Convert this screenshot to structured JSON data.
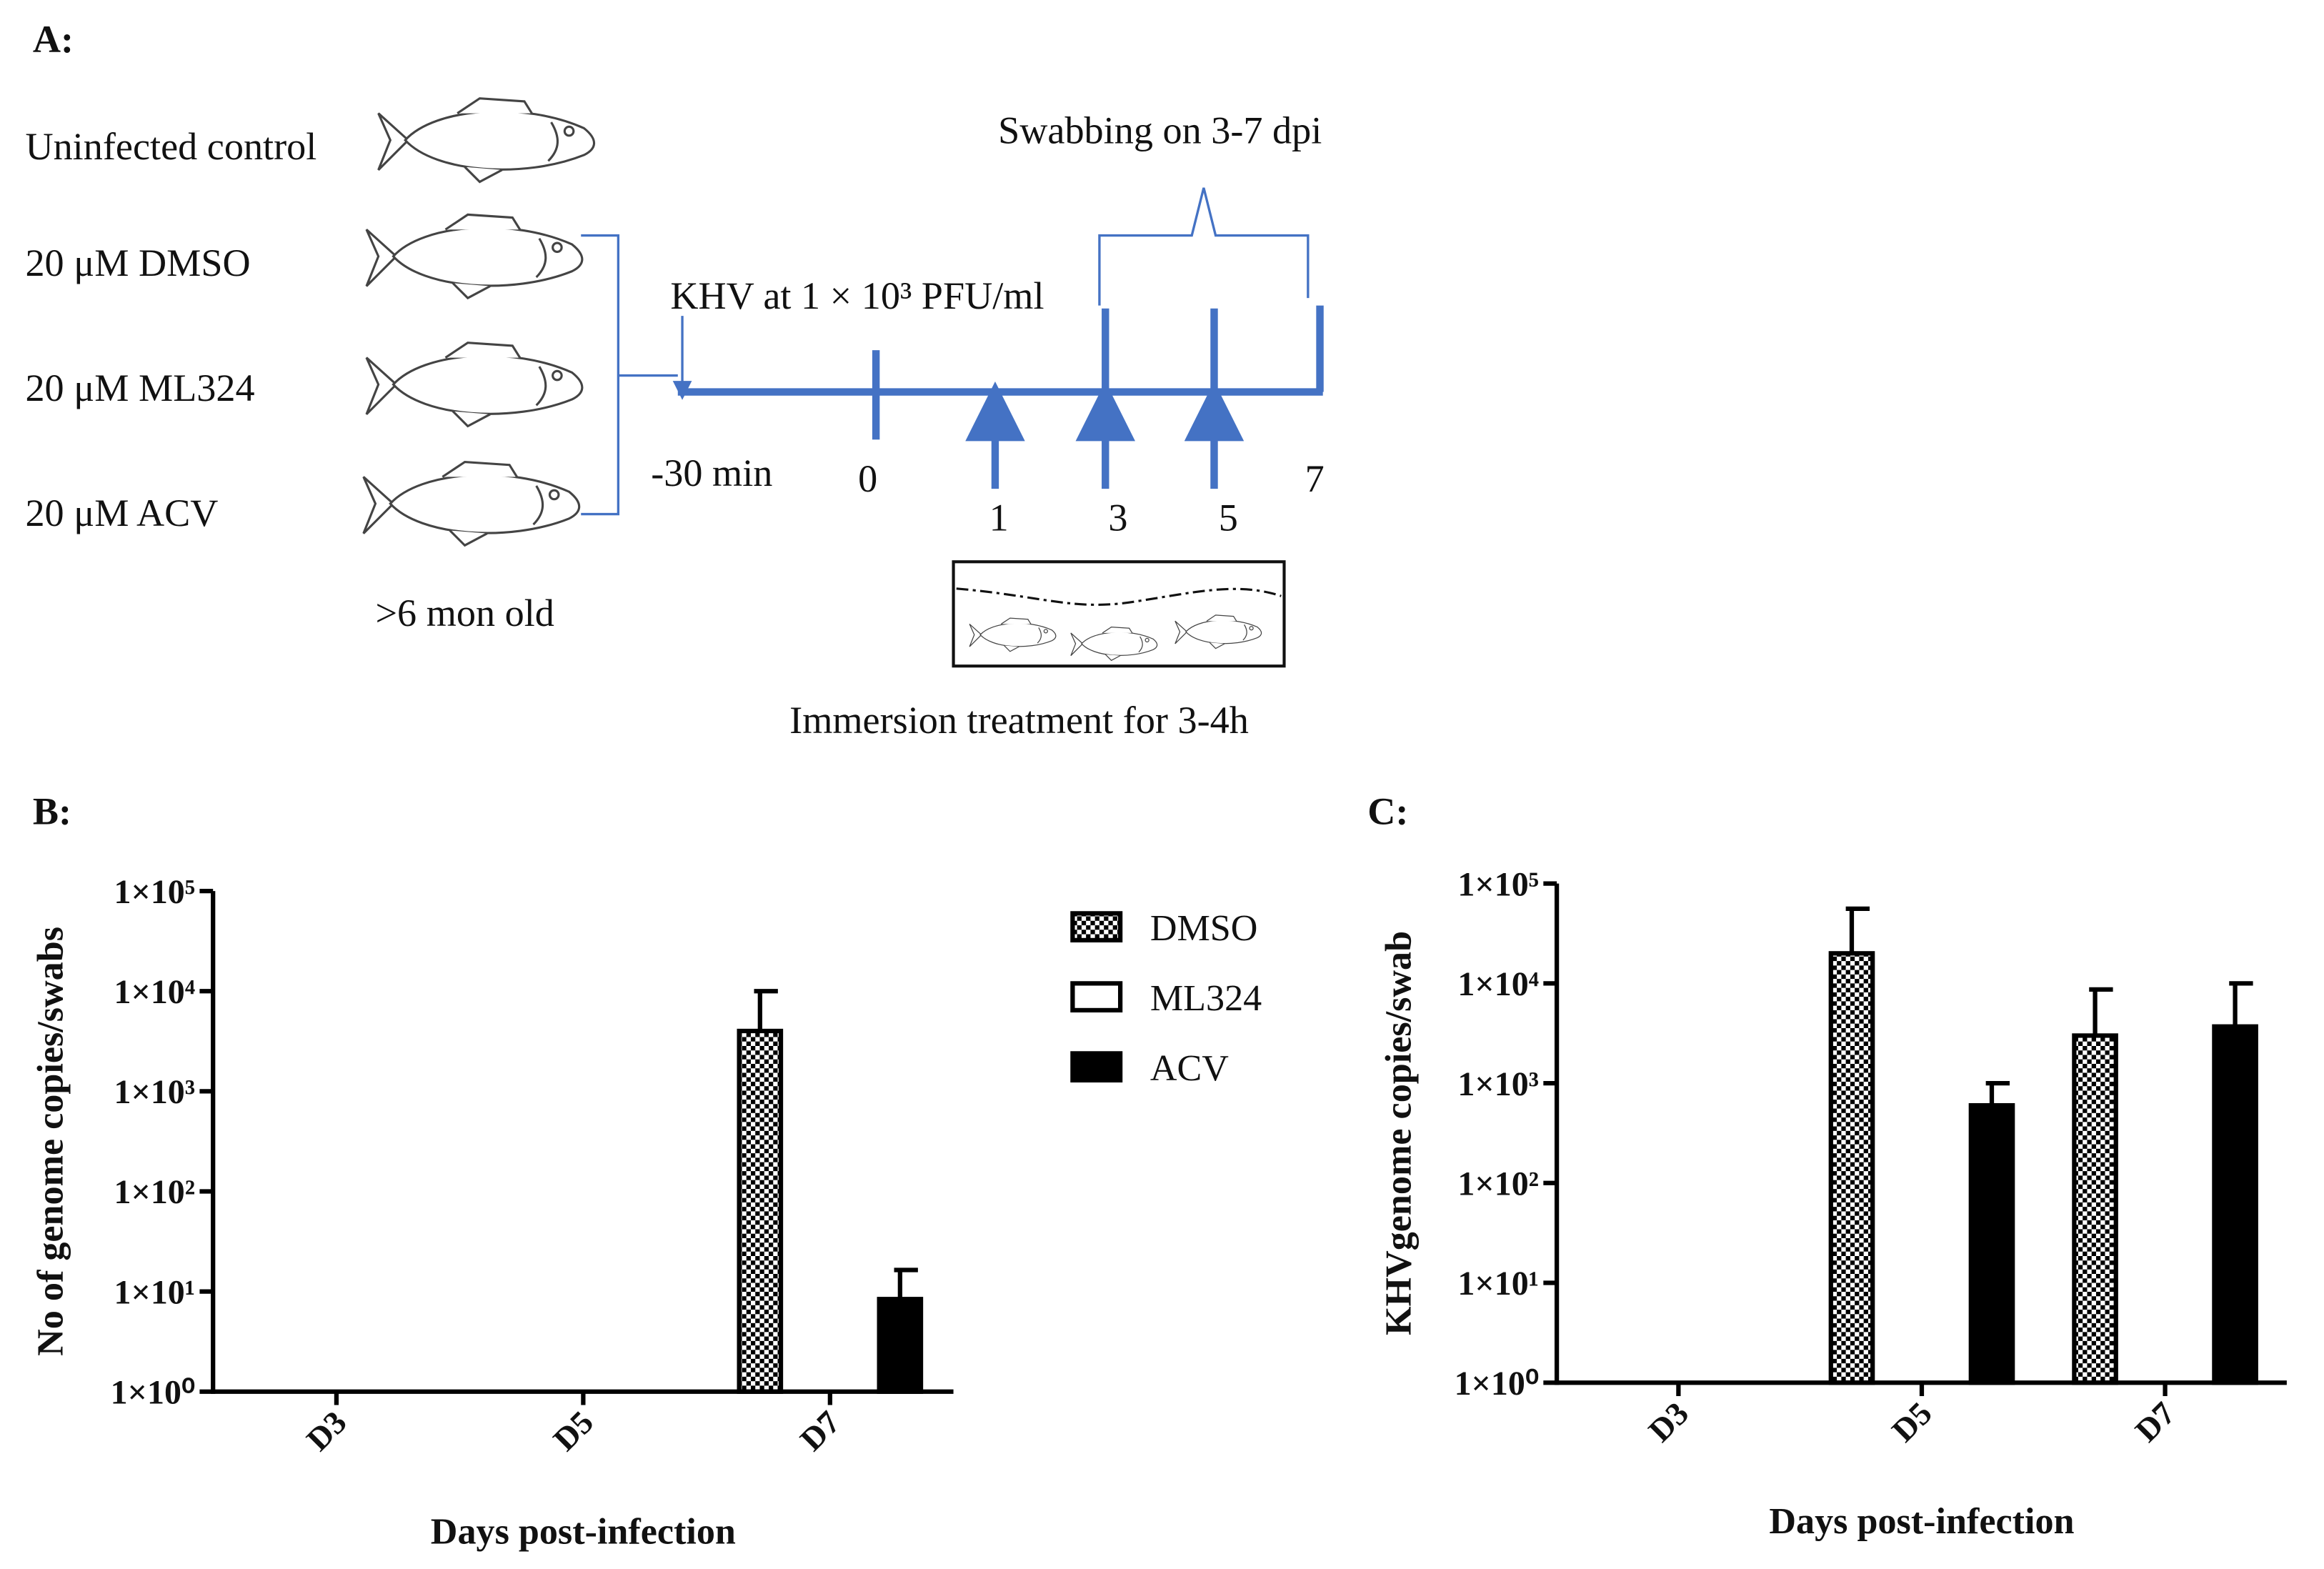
{
  "panel_a": {
    "label": "A:",
    "groups": [
      "Uninfected control",
      "20 μM DMSO",
      "20 μM  ML324",
      "20 μM ACV"
    ],
    "age": ">6 mon old",
    "swabbing": "Swabbing  on 3-7 dpi",
    "infection": "KHV at 1 × 10³ PFU/ml",
    "timeline": [
      "-30 min",
      "0",
      "1",
      "3",
      "5",
      "7"
    ],
    "immersion": "Immersion treatment for 3-4h"
  },
  "chart_data": [
    {
      "type": "bar",
      "panel_label": "B:",
      "ylabel": "No of genome copies/swabs",
      "xlabel": "Days post-infection",
      "categories": [
        "D3",
        "D5",
        "D7"
      ],
      "log_scale": true,
      "legend": "right",
      "ylim": [
        1,
        100000
      ],
      "yticks": [
        {
          "value": 1,
          "label": "1×10⁰"
        },
        {
          "value": 10,
          "label": "1×10¹"
        },
        {
          "value": 100,
          "label": "1×10²"
        },
        {
          "value": 1000,
          "label": "1×10³"
        },
        {
          "value": 10000,
          "label": "1×10⁴"
        },
        {
          "value": 100000,
          "label": "1×10⁵"
        }
      ],
      "series": [
        {
          "name": "DMSO",
          "color": "#000000",
          "pattern": "checker",
          "values": [
            null,
            null,
            4000
          ],
          "errors": [
            null,
            null,
            6000
          ]
        },
        {
          "name": "ML324",
          "color": "#ffffff",
          "values": [
            null,
            null,
            null
          ],
          "errors": [
            null,
            null,
            null
          ]
        },
        {
          "name": "ACV",
          "color": "#000000",
          "values": [
            null,
            null,
            8.4
          ],
          "errors": [
            null,
            null,
            8
          ]
        }
      ]
    },
    {
      "type": "bar",
      "panel_label": "C:",
      "ylabel": "KHVgenome copies/swab",
      "xlabel": "Days post-infection",
      "categories": [
        "D3",
        "D5",
        "D7"
      ],
      "log_scale": true,
      "ylim": [
        1,
        100000
      ],
      "yticks": [
        {
          "value": 1,
          "label": "1×10⁰"
        },
        {
          "value": 10,
          "label": "1×10¹"
        },
        {
          "value": 100,
          "label": "1×10²"
        },
        {
          "value": 1000,
          "label": "1×10³"
        },
        {
          "value": 10000,
          "label": "1×10⁴"
        },
        {
          "value": 100000,
          "label": "1×10⁵"
        }
      ],
      "series": [
        {
          "color": "#000000",
          "pattern": "checker",
          "values": [
            null,
            20000,
            3000
          ],
          "errors": [
            null,
            36000,
            5700
          ]
        },
        {
          "color": "#ffffff",
          "values": [
            null,
            null,
            null
          ],
          "errors": [
            null,
            null,
            null
          ]
        },
        {
          "color": "#000000",
          "values": [
            null,
            600,
            3700
          ],
          "errors": [
            null,
            400,
            6300
          ]
        }
      ]
    }
  ]
}
